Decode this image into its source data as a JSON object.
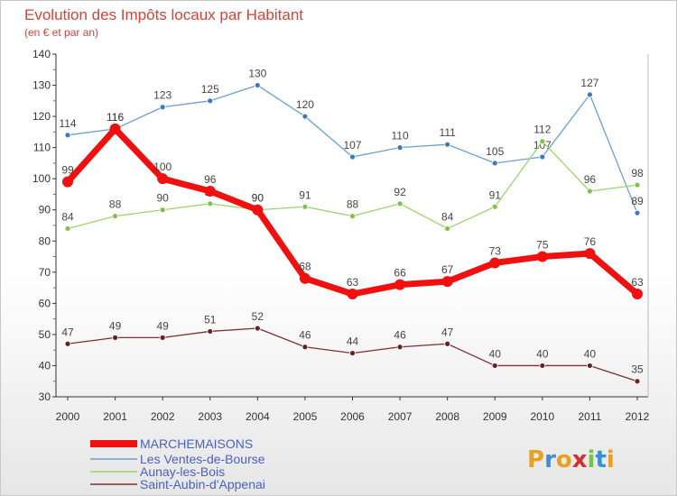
{
  "chart_data": {
    "type": "line",
    "title": "Evolution des Impôts locaux par Habitant",
    "subtitle": "(en € et par an)",
    "xlabel": "",
    "ylabel": "",
    "ylim": [
      30,
      140
    ],
    "y_ticks": [
      30,
      40,
      50,
      60,
      70,
      80,
      90,
      100,
      110,
      120,
      130,
      140
    ],
    "x": [
      "2000",
      "2001",
      "2002",
      "2003",
      "2004",
      "2005",
      "2006",
      "2007",
      "2008",
      "2009",
      "2010",
      "2011",
      "2012"
    ],
    "series": [
      {
        "name": "Les Ventes-de-Bourse",
        "color": "#6a9fd0",
        "marker": "#3a78c0",
        "values": [
          114,
          116,
          123,
          125,
          130,
          120,
          107,
          110,
          111,
          105,
          107,
          127,
          89
        ]
      },
      {
        "name": "Aunay-les-Bois",
        "color": "#9ad56c",
        "marker": "#7cc24a",
        "values": [
          84,
          88,
          90,
          92,
          90,
          91,
          88,
          92,
          84,
          91,
          112,
          96,
          98
        ]
      },
      {
        "name": "Saint-Aubin-d'Appenai",
        "color": "#7a3030",
        "marker": "#6a2020",
        "values": [
          47,
          49,
          49,
          51,
          52,
          46,
          44,
          46,
          47,
          40,
          40,
          40,
          35
        ]
      },
      {
        "name": "MARCHEMAISONS",
        "color": "#f01010",
        "marker": "#f01010",
        "values": [
          99,
          116,
          100,
          96,
          90,
          68,
          63,
          66,
          67,
          73,
          75,
          76,
          63
        ]
      }
    ],
    "legend": [
      "MARCHEMAISONS",
      "Les Ventes-de-Bourse",
      "Aunay-les-Bois",
      "Saint-Aubin-d'Appenai"
    ],
    "legend_position": "bottom-left",
    "grid": false
  },
  "brand": {
    "letters": [
      "P",
      "r",
      "o",
      "x",
      "i",
      "t",
      "i"
    ],
    "colors": [
      "#e8a020",
      "#3a8fd6",
      "#e8a020",
      "#d03030",
      "#7cc24a",
      "#3a8fd6",
      "#e8a020"
    ]
  }
}
